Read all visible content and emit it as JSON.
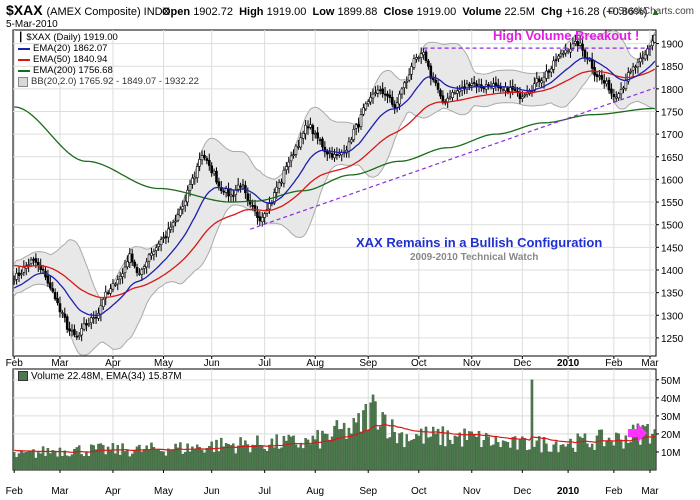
{
  "header": {
    "symbol": "$XAX",
    "exchange": "(AMEX Composite) INDX",
    "date": "5-Mar-2010",
    "open_label": "Open",
    "open": "1902.72",
    "high_label": "High",
    "high": "1919.00",
    "low_label": "Low",
    "low": "1899.88",
    "close_label": "Close",
    "close": "1919.00",
    "volume_label": "Volume",
    "volume": "22.5M",
    "chg_label": "Chg",
    "chg": "+16.28 (+0.86%)",
    "copyright": "© StockCharts.com",
    "up_arrow_icon": "up-arrow-icon"
  },
  "legend": {
    "price": "$XAX (Daily) 1919.00",
    "ema20": "EMA(20) 1862.07",
    "ema50": "EMA(50) 1840.94",
    "ema200": "EMA(200) 1756.68",
    "bb": "BB(20,2.0) 1765.92 - 1849.07 - 1932.22",
    "volume": "Volume 22.48M, EMA(34) 15.87M"
  },
  "annotations": {
    "breakout": "High Volume Breakout !",
    "title": "XAX Remains in a Bullish Configuration",
    "subtitle": "2009-2010 Technical Watch"
  },
  "colors": {
    "ema20": "#1f1fb0",
    "ema50": "#d81818",
    "ema200": "#1a6b1a",
    "bb": "#aaaaaa",
    "breakout": "#e21ee2",
    "title": "#1f2fd0",
    "subtitle": "#888888",
    "trendline": "#8a2be2",
    "volume_bar": "#4c7a4c",
    "arrow": "#ff33ff"
  },
  "chart_data": [
    {
      "type": "candlestick",
      "title": "$XAX (AMEX Composite) INDX",
      "ylim": [
        1210,
        1930
      ],
      "y_ticks": [
        1250,
        1300,
        1350,
        1400,
        1450,
        1500,
        1550,
        1600,
        1650,
        1700,
        1750,
        1800,
        1850,
        1900
      ],
      "x_ticks": [
        "Feb",
        "Mar",
        "Apr",
        "May",
        "Jun",
        "Jul",
        "Aug",
        "Sep",
        "Oct",
        "Nov",
        "Dec",
        "2010",
        "Feb",
        "Mar"
      ],
      "close_anchors": [
        [
          0,
          1385
        ],
        [
          8,
          1420
        ],
        [
          12,
          1395
        ],
        [
          16,
          1350
        ],
        [
          20,
          1300
        ],
        [
          23,
          1265
        ],
        [
          26,
          1250
        ],
        [
          30,
          1280
        ],
        [
          34,
          1300
        ],
        [
          38,
          1345
        ],
        [
          44,
          1385
        ],
        [
          48,
          1430
        ],
        [
          52,
          1390
        ],
        [
          57,
          1440
        ],
        [
          62,
          1470
        ],
        [
          66,
          1500
        ],
        [
          70,
          1540
        ],
        [
          74,
          1600
        ],
        [
          78,
          1655
        ],
        [
          82,
          1620
        ],
        [
          86,
          1580
        ],
        [
          90,
          1565
        ],
        [
          94,
          1590
        ],
        [
          98,
          1540
        ],
        [
          102,
          1515
        ],
        [
          106,
          1545
        ],
        [
          110,
          1590
        ],
        [
          114,
          1640
        ],
        [
          118,
          1680
        ],
        [
          122,
          1720
        ],
        [
          126,
          1690
        ],
        [
          130,
          1660
        ],
        [
          134,
          1650
        ],
        [
          138,
          1670
        ],
        [
          142,
          1715
        ],
        [
          146,
          1760
        ],
        [
          150,
          1795
        ],
        [
          154,
          1790
        ],
        [
          158,
          1760
        ],
        [
          162,
          1810
        ],
        [
          166,
          1860
        ],
        [
          170,
          1875
        ],
        [
          174,
          1820
        ],
        [
          178,
          1770
        ],
        [
          182,
          1790
        ],
        [
          186,
          1800
        ],
        [
          190,
          1815
        ],
        [
          194,
          1805
        ],
        [
          198,
          1810
        ],
        [
          202,
          1795
        ],
        [
          206,
          1800
        ],
        [
          210,
          1785
        ],
        [
          214,
          1800
        ],
        [
          218,
          1820
        ],
        [
          222,
          1840
        ],
        [
          226,
          1870
        ],
        [
          230,
          1890
        ],
        [
          234,
          1900
        ],
        [
          238,
          1870
        ],
        [
          242,
          1830
        ],
        [
          246,
          1810
        ],
        [
          249,
          1785
        ],
        [
          252,
          1800
        ],
        [
          255,
          1830
        ],
        [
          258,
          1850
        ],
        [
          261,
          1865
        ],
        [
          264,
          1895
        ],
        [
          266,
          1919
        ]
      ],
      "ema200_anchors": [
        [
          0,
          1760
        ],
        [
          30,
          1640
        ],
        [
          60,
          1580
        ],
        [
          90,
          1550
        ],
        [
          100,
          1552
        ],
        [
          120,
          1575
        ],
        [
          140,
          1610
        ],
        [
          160,
          1640
        ],
        [
          180,
          1670
        ],
        [
          200,
          1700
        ],
        [
          220,
          1725
        ],
        [
          240,
          1743
        ],
        [
          266,
          1756.68
        ]
      ],
      "breakout_line": {
        "x": [
          170,
          266
        ],
        "y": 1890
      },
      "support_line": {
        "x": [
          98,
          266
        ],
        "y": [
          1490,
          1802
        ]
      },
      "series": [
        {
          "name": "$XAX (Daily)",
          "last": 1919.0
        },
        {
          "name": "EMA(20)",
          "last": 1862.07
        },
        {
          "name": "EMA(50)",
          "last": 1840.94
        },
        {
          "name": "EMA(200)",
          "last": 1756.68
        },
        {
          "name": "BB(20,2.0)",
          "lower": 1765.92,
          "middle": 1849.07,
          "upper": 1932.22
        }
      ]
    },
    {
      "type": "bar",
      "title": "Volume",
      "ylim": [
        0,
        56
      ],
      "y_ticks": [
        "10M",
        "20M",
        "30M",
        "40M",
        "50M"
      ],
      "y_tick_values": [
        10,
        20,
        30,
        40,
        50
      ],
      "x_ticks": [
        "Feb",
        "Mar",
        "Apr",
        "May",
        "Jun",
        "Jul",
        "Aug",
        "Sep",
        "Oct",
        "Nov",
        "Dec",
        "2010",
        "Feb",
        "Mar"
      ],
      "volume_anchors": [
        [
          0,
          8
        ],
        [
          20,
          11
        ],
        [
          50,
          11
        ],
        [
          70,
          12
        ],
        [
          90,
          14
        ],
        [
          120,
          15
        ],
        [
          140,
          22
        ],
        [
          150,
          34
        ],
        [
          160,
          19
        ],
        [
          185,
          18
        ],
        [
          210,
          14
        ],
        [
          230,
          15
        ],
        [
          250,
          17
        ],
        [
          266,
          22.48
        ]
      ],
      "spike": {
        "x": 215,
        "value": 50
      },
      "ema34_last": 15.87
    }
  ]
}
